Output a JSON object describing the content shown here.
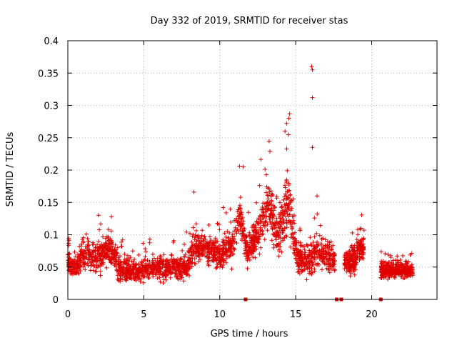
{
  "chart_data": {
    "type": "scatter",
    "title": "Day 332 of 2019, SRMTID for receiver stas",
    "xlabel": "GPS time / hours",
    "ylabel": "SRMTID / TECUs",
    "xlim": [
      0,
      24.3
    ],
    "ylim": [
      0,
      0.4
    ],
    "xticks": [
      0,
      5,
      10,
      15,
      20
    ],
    "xtick_labels": [
      "0",
      "5",
      "10",
      "15",
      "20"
    ],
    "yticks": [
      0,
      0.05,
      0.1,
      0.15,
      0.2,
      0.25,
      0.3,
      0.35,
      0.4
    ],
    "ytick_labels": [
      "0",
      "0.05",
      "0.1",
      "0.15",
      "0.2",
      "0.25",
      "0.3",
      "0.35",
      "0.4"
    ],
    "grid": true,
    "marker": "plus",
    "color": "#e00000",
    "series": [
      {
        "name": "SRMTID",
        "profile": [
          {
            "t": 0.0,
            "base": 0.06,
            "spread": 0.035
          },
          {
            "t": 0.6,
            "base": 0.045,
            "spread": 0.03
          },
          {
            "t": 1.0,
            "base": 0.075,
            "spread": 0.045
          },
          {
            "t": 2.0,
            "base": 0.065,
            "spread": 0.04
          },
          {
            "t": 2.8,
            "base": 0.08,
            "spread": 0.04
          },
          {
            "t": 3.5,
            "base": 0.045,
            "spread": 0.03
          },
          {
            "t": 5.0,
            "base": 0.045,
            "spread": 0.03
          },
          {
            "t": 6.5,
            "base": 0.05,
            "spread": 0.03
          },
          {
            "t": 7.8,
            "base": 0.05,
            "spread": 0.03
          },
          {
            "t": 8.3,
            "base": 0.08,
            "spread": 0.045
          },
          {
            "t": 9.0,
            "base": 0.08,
            "spread": 0.04
          },
          {
            "t": 10.0,
            "base": 0.07,
            "spread": 0.035
          },
          {
            "t": 10.8,
            "base": 0.085,
            "spread": 0.045
          },
          {
            "t": 11.3,
            "base": 0.13,
            "spread": 0.06
          },
          {
            "t": 11.8,
            "base": 0.075,
            "spread": 0.04
          },
          {
            "t": 12.5,
            "base": 0.1,
            "spread": 0.05
          },
          {
            "t": 13.2,
            "base": 0.15,
            "spread": 0.065
          },
          {
            "t": 13.8,
            "base": 0.1,
            "spread": 0.05
          },
          {
            "t": 14.5,
            "base": 0.15,
            "spread": 0.09
          },
          {
            "t": 15.1,
            "base": 0.065,
            "spread": 0.04
          },
          {
            "t": 16.0,
            "base": 0.06,
            "spread": 0.04
          },
          {
            "t": 16.3,
            "base": 0.075,
            "spread": 0.05
          },
          {
            "t": 17.5,
            "base": 0.06,
            "spread": 0.035
          }
        ],
        "segments": [
          {
            "from": 0.0,
            "to": 17.6,
            "points": 2200
          },
          {
            "from": 18.2,
            "to": 19.5,
            "points": 240
          },
          {
            "from": 20.6,
            "to": 22.7,
            "points": 380
          }
        ],
        "outliers": [
          {
            "x": 16.05,
            "y": 0.36
          },
          {
            "x": 16.1,
            "y": 0.355
          },
          {
            "x": 16.1,
            "y": 0.312
          },
          {
            "x": 16.1,
            "y": 0.235
          },
          {
            "x": 14.6,
            "y": 0.287
          },
          {
            "x": 14.55,
            "y": 0.28
          },
          {
            "x": 14.4,
            "y": 0.272
          },
          {
            "x": 14.3,
            "y": 0.26
          },
          {
            "x": 13.3,
            "y": 0.229
          },
          {
            "x": 11.3,
            "y": 0.206
          },
          {
            "x": 11.55,
            "y": 0.205
          },
          {
            "x": 8.3,
            "y": 0.166
          }
        ],
        "zero_markers": [
          11.7,
          17.7,
          18.0,
          20.6
        ]
      }
    ]
  }
}
